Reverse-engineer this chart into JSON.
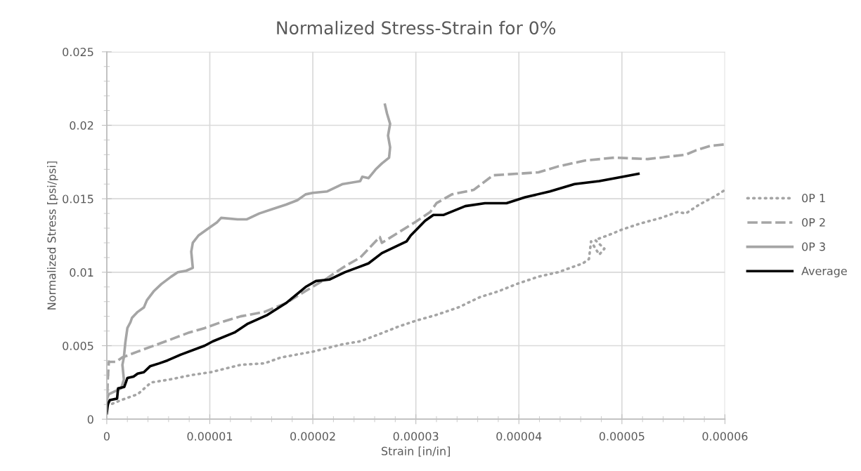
{
  "chart_data": {
    "type": "line",
    "title": "Normalized Stress-Strain for 0%",
    "xlabel": "Strain [in/in]",
    "ylabel": "Normalized Stress [psi/psi]",
    "xlim": [
      0,
      6e-05
    ],
    "ylim": [
      0,
      0.025
    ],
    "xticks": [
      0,
      {
        "value": 1e-05,
        "label": "0.00001"
      },
      {
        "value": 2e-05,
        "label": "0.00002"
      },
      {
        "value": 3e-05,
        "label": "0.00003"
      },
      {
        "value": 4e-05,
        "label": "0.00004"
      },
      {
        "value": 5e-05,
        "label": "0.00005"
      },
      {
        "value": 6e-05,
        "label": "0.00006"
      }
    ],
    "yticks": [
      0,
      0.005,
      0.01,
      0.015,
      0.02,
      0.025
    ],
    "grid": true,
    "legend": "right",
    "marker": "none",
    "series": [
      {
        "name": "0P 1",
        "color": "#a5a5a5",
        "line_style": "dotted",
        "x": [
          0,
          1.4e-06,
          3e-06,
          4.3e-06,
          6.1e-06,
          8.2e-06,
          1.01e-05,
          1.3e-05,
          1.53e-05,
          1.69e-05,
          2e-05,
          2.29e-05,
          2.46e-05,
          2.65e-05,
          2.83e-05,
          3e-05,
          3.2e-05,
          3.41e-05,
          3.62e-05,
          3.8e-05,
          3.98e-05,
          4.19e-05,
          4.38e-05,
          4.62e-05,
          4.68e-05,
          4.7e-05,
          4.78e-05,
          4.83e-05,
          4.74e-05,
          4.86e-05,
          5e-05,
          5.17e-05,
          5.38e-05,
          5.54e-05,
          5.62e-05,
          5.75e-05,
          5.91e-05,
          6e-05
        ],
        "values": [
          0.0009,
          0.0013,
          0.0017,
          0.0025,
          0.0027,
          0.003,
          0.0032,
          0.0037,
          0.0038,
          0.0042,
          0.0046,
          0.0051,
          0.0053,
          0.0058,
          0.0063,
          0.0067,
          0.0071,
          0.0076,
          0.0083,
          0.0087,
          0.0092,
          0.0097,
          0.01,
          0.0106,
          0.0109,
          0.0121,
          0.0112,
          0.0116,
          0.0122,
          0.0125,
          0.0129,
          0.0133,
          0.0137,
          0.0141,
          0.014,
          0.0146,
          0.0152,
          0.0156
        ]
      },
      {
        "name": "0P 2",
        "color": "#a5a5a5",
        "line_style": "dashed",
        "x": [
          0,
          1e-07,
          2e-07,
          9e-07,
          1.5e-06,
          3e-06,
          4.55e-06,
          6.1e-06,
          8e-06,
          9.5e-06,
          1.11e-05,
          1.3e-05,
          1.53e-05,
          1.74e-05,
          1.9e-05,
          2.14e-05,
          2.31e-05,
          2.46e-05,
          2.65e-05,
          2.67e-05,
          2.83e-05,
          2.99e-05,
          3.14e-05,
          3.2e-05,
          3.35e-05,
          3.56e-05,
          3.75e-05,
          3.98e-05,
          4.19e-05,
          4.38e-05,
          4.64e-05,
          4.93e-05,
          5.25e-05,
          5.62e-05,
          5.72e-05,
          5.86e-05,
          6e-05
        ],
        "values": [
          0.0008,
          0.0027,
          0.0039,
          0.0039,
          0.0042,
          0.0046,
          0.005,
          0.0054,
          0.0059,
          0.0062,
          0.0066,
          0.007,
          0.0073,
          0.0079,
          0.0086,
          0.0096,
          0.0104,
          0.011,
          0.0124,
          0.012,
          0.0127,
          0.0134,
          0.0141,
          0.0147,
          0.0153,
          0.0156,
          0.0166,
          0.0167,
          0.0168,
          0.0172,
          0.0176,
          0.0178,
          0.0177,
          0.018,
          0.0183,
          0.0186,
          0.0187
        ]
      },
      {
        "name": "0P 3",
        "color": "#a5a5a5",
        "line_style": "solid",
        "x": [
          0,
          2e-07,
          1.4e-06,
          1.66e-06,
          1.52e-06,
          1.66e-06,
          1.8e-06,
          2e-06,
          2.3e-06,
          2.45e-06,
          3e-06,
          3.6e-06,
          3.9e-06,
          4.55e-06,
          5.3e-06,
          6.25e-06,
          6.9e-06,
          7.7e-06,
          8.35e-06,
          8.2e-06,
          8.35e-06,
          8.9e-06,
          9.9e-06,
          1.07e-05,
          1.11e-05,
          1.27e-05,
          1.36e-05,
          1.48e-05,
          1.61e-05,
          1.74e-05,
          1.85e-05,
          1.93e-05,
          2e-05,
          2.14e-05,
          2.29e-05,
          2.46e-05,
          2.48e-05,
          2.54e-05,
          2.61e-05,
          2.67e-05,
          2.74e-05,
          2.75e-05,
          2.73e-05,
          2.75e-05,
          2.72e-05,
          2.7e-05
        ],
        "values": [
          0.00135,
          0.0017,
          0.0021,
          0.0027,
          0.0037,
          0.0042,
          0.0052,
          0.0062,
          0.0066,
          0.0069,
          0.0073,
          0.0076,
          0.0081,
          0.0087,
          0.0092,
          0.0097,
          0.01,
          0.0101,
          0.0103,
          0.0114,
          0.012,
          0.0125,
          0.013,
          0.0134,
          0.0137,
          0.0136,
          0.0136,
          0.014,
          0.0143,
          0.0146,
          0.0149,
          0.0153,
          0.0154,
          0.0155,
          0.016,
          0.0162,
          0.0165,
          0.0164,
          0.017,
          0.0174,
          0.0178,
          0.0185,
          0.0193,
          0.0201,
          0.0208,
          0.0214
        ]
      },
      {
        "name": "Average",
        "color": "#000000",
        "line_style": "solid",
        "x": [
          0,
          1e-07,
          3e-07,
          1e-06,
          1.1e-06,
          1.7e-06,
          2e-06,
          2.6e-06,
          3e-06,
          3.6e-06,
          4.2e-06,
          5.1e-06,
          5.9e-06,
          7.2e-06,
          9.5e-06,
          1.03e-05,
          1.24e-05,
          1.37e-05,
          1.56e-05,
          1.74e-05,
          1.93e-05,
          2.03e-05,
          2.16e-05,
          2.31e-05,
          2.54e-05,
          2.67e-05,
          2.91e-05,
          2.95e-05,
          3.09e-05,
          3.17e-05,
          3.27e-05,
          3.48e-05,
          3.67e-05,
          3.88e-05,
          4.06e-05,
          4.3e-05,
          4.54e-05,
          4.78e-05,
          5.01e-05,
          5.16e-05
        ],
        "values": [
          0.0004,
          0.001,
          0.0013,
          0.0014,
          0.0021,
          0.0022,
          0.0028,
          0.0029,
          0.0031,
          0.0032,
          0.0036,
          0.0038,
          0.004,
          0.0044,
          0.005,
          0.0053,
          0.0059,
          0.0065,
          0.0071,
          0.0079,
          0.009,
          0.0094,
          0.0095,
          0.01,
          0.0106,
          0.0113,
          0.0121,
          0.0125,
          0.0135,
          0.0139,
          0.0139,
          0.0145,
          0.0147,
          0.0147,
          0.0151,
          0.0155,
          0.016,
          0.0162,
          0.0165,
          0.0167
        ]
      }
    ]
  }
}
